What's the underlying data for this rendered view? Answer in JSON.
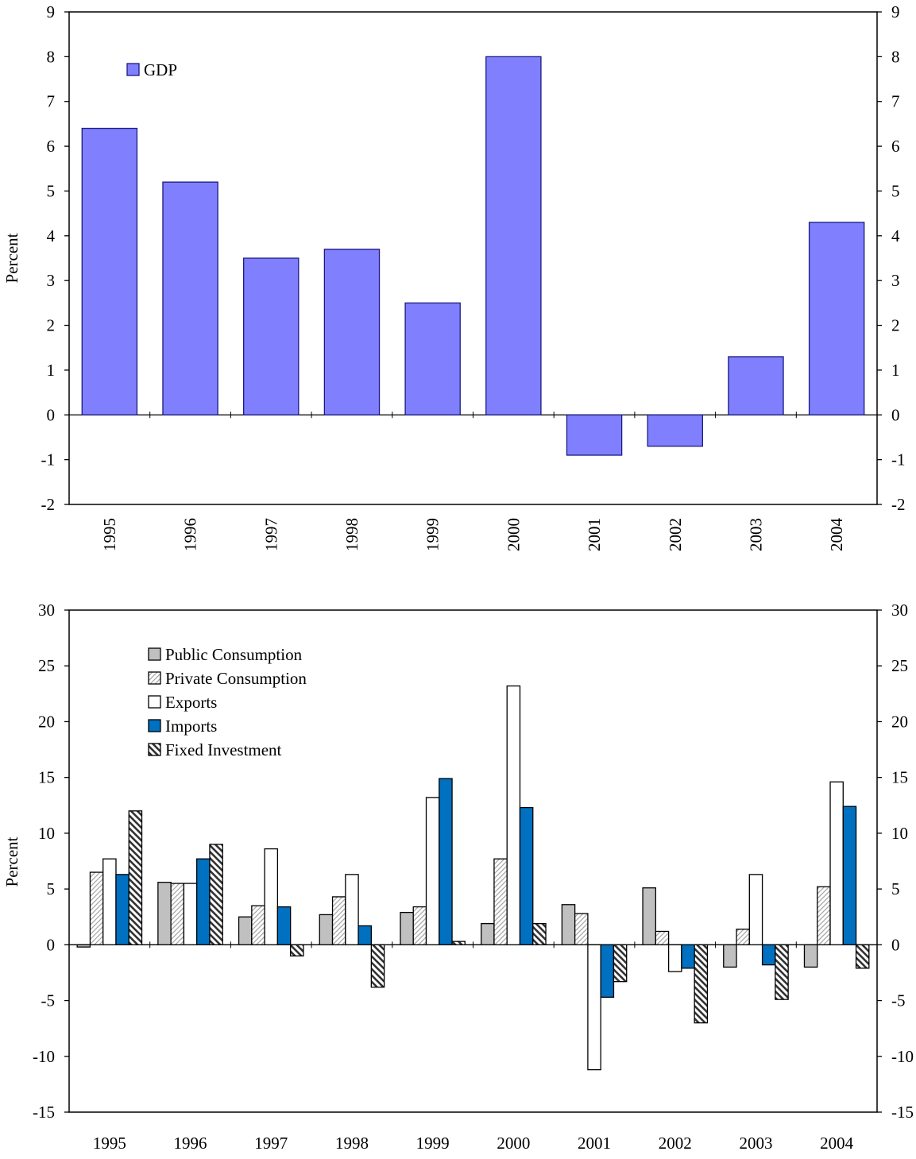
{
  "chart_data": [
    {
      "type": "bar",
      "title": "",
      "xlabel": "",
      "ylabel": "Percent",
      "ylim": [
        -2,
        9
      ],
      "yticks": [
        -2,
        -1,
        0,
        1,
        2,
        3,
        4,
        5,
        6,
        7,
        8,
        9
      ],
      "tick_labels_rotated": true,
      "grid": false,
      "legend_position": "top-left",
      "categories": [
        "1995",
        "1996",
        "1997",
        "1998",
        "1999",
        "2000",
        "2001",
        "2002",
        "2003",
        "2004"
      ],
      "series": [
        {
          "name": "GDP",
          "color": "#8080ff",
          "pattern": "solid",
          "values": [
            6.4,
            5.2,
            3.5,
            3.7,
            2.5,
            8.0,
            -0.9,
            -0.7,
            1.3,
            4.3
          ]
        }
      ]
    },
    {
      "type": "bar",
      "title": "",
      "xlabel": "",
      "ylabel": "Percent",
      "ylim": [
        -15,
        30
      ],
      "yticks": [
        -15,
        -10,
        -5,
        0,
        5,
        10,
        15,
        20,
        25,
        30
      ],
      "tick_labels_rotated": false,
      "grid": false,
      "legend_position": "top-left",
      "categories": [
        "1995",
        "1996",
        "1997",
        "1998",
        "1999",
        "2000",
        "2001",
        "2002",
        "2003",
        "2004"
      ],
      "series": [
        {
          "name": "Public Consumption",
          "color": "#c0c0c0",
          "pattern": "solid",
          "values": [
            -0.2,
            5.6,
            2.5,
            2.7,
            2.9,
            1.9,
            3.6,
            5.1,
            -2.0,
            -2.0
          ]
        },
        {
          "name": "Private Consumption",
          "color": "#ffffff",
          "pattern": "light-hatch",
          "values": [
            6.5,
            5.5,
            3.5,
            4.3,
            3.4,
            7.7,
            2.8,
            1.2,
            1.4,
            5.2
          ]
        },
        {
          "name": "Exports",
          "color": "#ffffff",
          "pattern": "solid",
          "values": [
            7.7,
            5.5,
            8.6,
            6.3,
            13.2,
            23.2,
            -11.2,
            -2.4,
            6.3,
            14.6
          ]
        },
        {
          "name": "Imports",
          "color": "#0070c0",
          "pattern": "solid",
          "values": [
            6.3,
            7.7,
            3.4,
            1.7,
            14.9,
            12.3,
            -4.7,
            -2.1,
            -1.8,
            12.4
          ]
        },
        {
          "name": "Fixed Investment",
          "color": "#ffffff",
          "pattern": "dark-hatch",
          "values": [
            12.0,
            9.0,
            -1.0,
            -3.8,
            0.3,
            1.9,
            -3.3,
            -7.0,
            -4.9,
            -2.1
          ]
        }
      ]
    }
  ]
}
